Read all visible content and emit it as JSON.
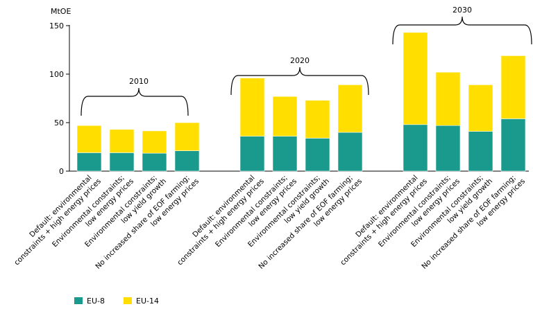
{
  "chart_data": {
    "type": "bar",
    "stacked": true,
    "unit": "MtOE",
    "ylim": [
      0,
      150
    ],
    "yticks": [
      0,
      50,
      100,
      150
    ],
    "grid": false,
    "legend_position": "bottom-left",
    "groups": [
      {
        "label": "2010",
        "categories": [
          [
            "Default: environmental",
            "constraints + high energy prices"
          ],
          [
            "Environmental constraints;",
            "low energy prices"
          ],
          [
            "Environmental constraints;",
            "low yield growth"
          ],
          [
            "No increased share of EOF farming;",
            "low energy prices"
          ]
        ],
        "series_values": {
          "EU-8": [
            19,
            19,
            18.5,
            21
          ],
          "EU-14": [
            28,
            24,
            23,
            29
          ]
        }
      },
      {
        "label": "2020",
        "categories": [
          [
            "Default: environmental",
            "constraints + high energy prices"
          ],
          [
            "Environmental constraints;",
            "low energy prices"
          ],
          [
            "Environmental constraints;",
            "low yield growth"
          ],
          [
            "No increased share of EOF farming;",
            "low energy prices"
          ]
        ],
        "series_values": {
          "EU-8": [
            36,
            36,
            34,
            40
          ],
          "EU-14": [
            60,
            41,
            39,
            49
          ]
        }
      },
      {
        "label": "2030",
        "categories": [
          [
            "Default: environmental",
            "constraints + high energy prices"
          ],
          [
            "Environmental constraints;",
            "low energy prices"
          ],
          [
            "Environmental constraints;",
            "low yield growth"
          ],
          [
            "No increased share of EOF farming;",
            "low energy prices"
          ]
        ],
        "series_values": {
          "EU-8": [
            48,
            47,
            41,
            54
          ],
          "EU-14": [
            95,
            55,
            48,
            65
          ]
        }
      }
    ],
    "series": [
      {
        "name": "EU-8",
        "color": "#1a9a8c"
      },
      {
        "name": "EU-14",
        "color": "#ffde00"
      }
    ]
  }
}
